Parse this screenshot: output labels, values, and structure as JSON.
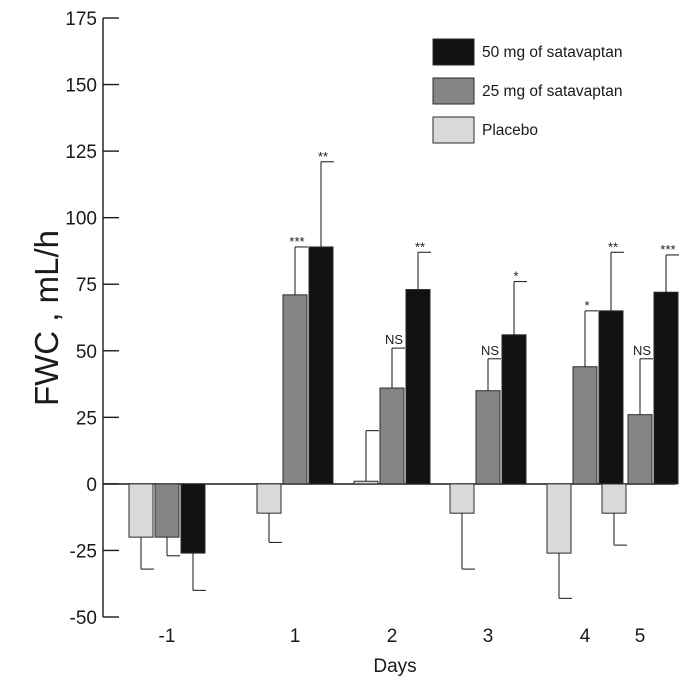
{
  "chart_data": {
    "type": "bar",
    "xlabel": "Days",
    "ylabel": "FWC , mL/h",
    "ylim": [
      -50,
      175
    ],
    "yticks": [
      -50,
      -25,
      0,
      25,
      50,
      75,
      100,
      125,
      150,
      175
    ],
    "yticklabels": [
      "-50",
      "-25",
      "0",
      "25",
      "50",
      "75",
      "100",
      "125",
      "150",
      "175"
    ],
    "categories": [
      "-1",
      "1",
      "2",
      "3",
      "4",
      "5"
    ],
    "legend_position": "top-right",
    "series": [
      {
        "name": "Placebo",
        "color": "#d9d9d9",
        "values": [
          -20,
          -11,
          1,
          -11,
          -26,
          -11
        ],
        "error": [
          12,
          11,
          19,
          21,
          17,
          12
        ],
        "annotations": [
          "",
          "",
          "",
          "",
          "",
          ""
        ]
      },
      {
        "name": "25 mg of satavaptan",
        "color": "#858585",
        "values": [
          -20,
          71,
          36,
          35,
          44,
          26
        ],
        "error": [
          7,
          18,
          15,
          12,
          21,
          21
        ],
        "annotations": [
          "",
          "***",
          "NS",
          "NS",
          "*",
          "NS"
        ]
      },
      {
        "name": "50 mg of satavaptan",
        "color": "#111111",
        "values": [
          -26,
          89,
          73,
          56,
          65,
          72
        ],
        "error": [
          14,
          32,
          14,
          20,
          22,
          14
        ],
        "annotations": [
          "",
          "**",
          "**",
          "*",
          "**",
          "***"
        ]
      }
    ],
    "legend_order": [
      "50 mg of satavaptan",
      "25 mg of satavaptan",
      "Placebo"
    ]
  }
}
